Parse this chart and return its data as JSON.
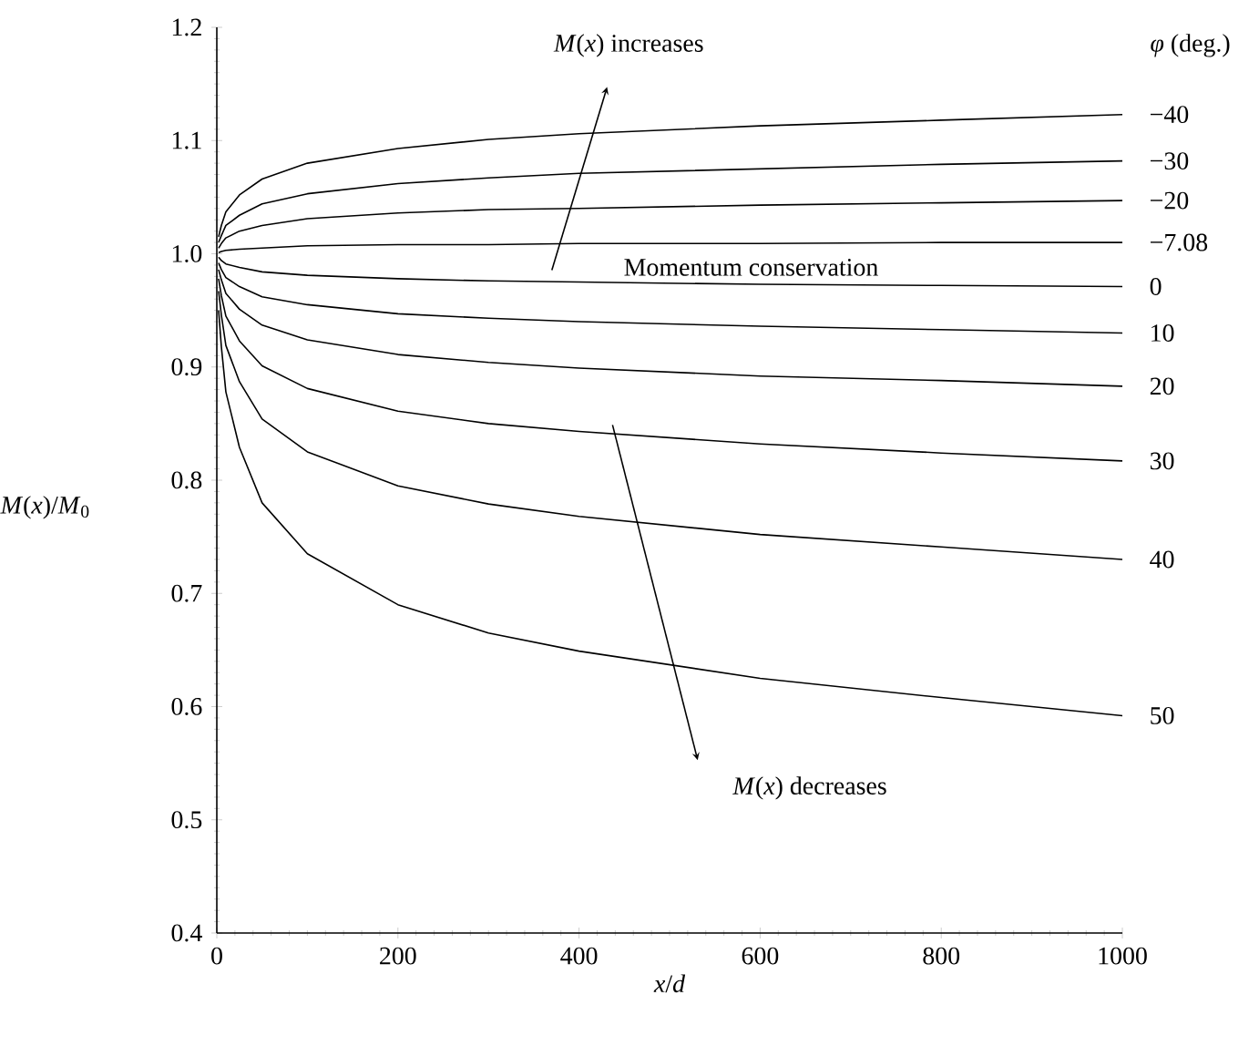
{
  "chart_data": {
    "type": "line",
    "xlabel": "*x*/*d*",
    "ylabel": "*M*(*x*)/*M*$_{0}$",
    "legend_title": "*φ* (deg.)",
    "x": [
      2,
      5,
      10,
      25,
      50,
      100,
      200,
      300,
      400,
      600,
      800,
      1000
    ],
    "series": [
      {
        "name": "−40",
        "color": "#000000",
        "values": [
          1.015,
          1.025,
          1.037,
          1.052,
          1.066,
          1.08,
          1.093,
          1.101,
          1.106,
          1.113,
          1.118,
          1.123
        ]
      },
      {
        "name": "−30",
        "color": "#000000",
        "values": [
          1.01,
          1.016,
          1.025,
          1.034,
          1.044,
          1.053,
          1.062,
          1.067,
          1.071,
          1.075,
          1.079,
          1.082
        ]
      },
      {
        "name": "−20",
        "color": "#000000",
        "values": [
          1.005,
          1.009,
          1.014,
          1.02,
          1.025,
          1.031,
          1.036,
          1.039,
          1.04,
          1.043,
          1.045,
          1.047
        ]
      },
      {
        "name": "−7.08",
        "color": "#000000",
        "values": [
          1.001,
          1.002,
          1.003,
          1.004,
          1.005,
          1.007,
          1.008,
          1.008,
          1.009,
          1.009,
          1.01,
          1.01
        ]
      },
      {
        "name": "0",
        "color": "#000000",
        "values": [
          0.997,
          0.994,
          0.991,
          0.988,
          0.984,
          0.981,
          0.978,
          0.976,
          0.975,
          0.973,
          0.972,
          0.971
        ]
      },
      {
        "name": "10",
        "color": "#000000",
        "values": [
          0.992,
          0.986,
          0.979,
          0.971,
          0.962,
          0.955,
          0.947,
          0.943,
          0.94,
          0.936,
          0.933,
          0.93
        ]
      },
      {
        "name": "20",
        "color": "#000000",
        "values": [
          0.986,
          0.977,
          0.965,
          0.951,
          0.937,
          0.924,
          0.911,
          0.904,
          0.899,
          0.892,
          0.888,
          0.883
        ]
      },
      {
        "name": "30",
        "color": "#000000",
        "values": [
          0.978,
          0.963,
          0.945,
          0.923,
          0.901,
          0.881,
          0.861,
          0.85,
          0.843,
          0.832,
          0.824,
          0.817
        ]
      },
      {
        "name": "40",
        "color": "#000000",
        "values": [
          0.967,
          0.946,
          0.919,
          0.887,
          0.854,
          0.825,
          0.795,
          0.779,
          0.768,
          0.752,
          0.741,
          0.73
        ]
      },
      {
        "name": "50",
        "color": "#000000",
        "values": [
          0.95,
          0.918,
          0.878,
          0.829,
          0.78,
          0.735,
          0.69,
          0.665,
          0.649,
          0.625,
          0.608,
          0.592
        ]
      }
    ],
    "annotations": [
      "*M*(*x*) increases",
      "Momentum conservation",
      "*M*(*x*) decreases"
    ],
    "xlim": [
      0,
      1000
    ],
    "xticks": [
      0,
      200,
      400,
      600,
      800,
      1000
    ],
    "ylim": [
      0.4,
      1.2
    ],
    "yticks": [
      0.4,
      0.5,
      0.6,
      0.7,
      0.8,
      0.9,
      {
        "value": 1.0,
        "label": "1.0"
      },
      1.1,
      1.2
    ],
    "grid": false,
    "marker": "none",
    "line_style": "solid"
  }
}
